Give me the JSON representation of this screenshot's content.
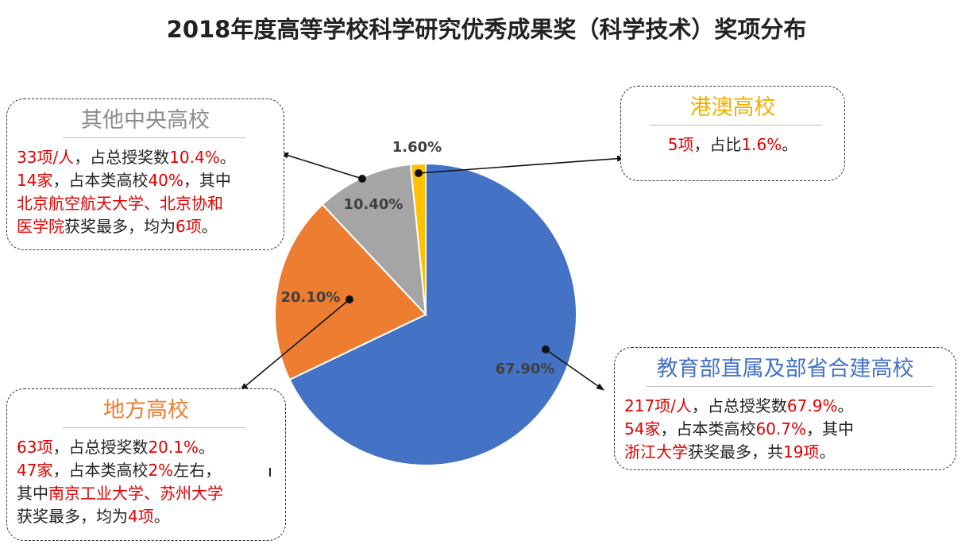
{
  "title": "2018年度高等学校科学研究优秀成果奖（科学技术）奖项分布",
  "colors": {
    "moe": "#4472C4",
    "local": "#ED7D31",
    "other": "#A5A5A5",
    "hkm": "#FFC000",
    "highlight": "#E00000"
  },
  "chart_data": {
    "type": "pie",
    "categories": [
      "教育部直属及部省合建高校",
      "地方高校",
      "其他中央高校",
      "港澳高校"
    ],
    "values": [
      67.9,
      20.1,
      10.4,
      1.6
    ],
    "data_labels": [
      "67.90%",
      "20.10%",
      "10.40%",
      "1.60%"
    ]
  },
  "boxes": {
    "other": {
      "heading": "其他中央高校",
      "lines": [
        [
          {
            "t": "33项/人",
            "hl": true
          },
          {
            "t": "，占总授奖数",
            "hl": false
          },
          {
            "t": "10.4%",
            "hl": true
          },
          {
            "t": "。",
            "hl": false
          }
        ],
        [
          {
            "t": "14家",
            "hl": true
          },
          {
            "t": "，占本类高校",
            "hl": false
          },
          {
            "t": "40%",
            "hl": true
          },
          {
            "t": "，其中",
            "hl": false
          }
        ],
        [
          {
            "t": "北京航空航天大学、北京协和",
            "hl": true
          }
        ],
        [
          {
            "t": "医学院",
            "hl": true
          },
          {
            "t": "获奖最多，均为",
            "hl": false
          },
          {
            "t": "6项",
            "hl": true
          },
          {
            "t": "。",
            "hl": false
          }
        ]
      ]
    },
    "hkm": {
      "heading": "港澳高校",
      "lines": [
        [
          {
            "t": "5项",
            "hl": true
          },
          {
            "t": "，占比",
            "hl": false
          },
          {
            "t": "1.6%",
            "hl": true
          },
          {
            "t": "。",
            "hl": false
          }
        ]
      ]
    },
    "local": {
      "heading": "地方高校",
      "lines": [
        [
          {
            "t": "63项",
            "hl": true
          },
          {
            "t": "，占总授奖数",
            "hl": false
          },
          {
            "t": "20.1%",
            "hl": true
          },
          {
            "t": "。",
            "hl": false
          }
        ],
        [
          {
            "t": "47家",
            "hl": true
          },
          {
            "t": "，占本类高校",
            "hl": false
          },
          {
            "t": "2%",
            "hl": true
          },
          {
            "t": "左右，",
            "hl": false
          }
        ],
        [
          {
            "t": "其中",
            "hl": false
          },
          {
            "t": "南京工业大学、苏州大学",
            "hl": true
          }
        ],
        [
          {
            "t": "获奖最多，均为",
            "hl": false
          },
          {
            "t": "4项",
            "hl": true
          },
          {
            "t": "。",
            "hl": false
          }
        ]
      ]
    },
    "moe": {
      "heading": "教育部直属及部省合建高校",
      "lines": [
        [
          {
            "t": "217项/人",
            "hl": true
          },
          {
            "t": "，占总授奖数",
            "hl": false
          },
          {
            "t": "67.9%",
            "hl": true
          },
          {
            "t": "。",
            "hl": false
          }
        ],
        [
          {
            "t": "54家",
            "hl": true
          },
          {
            "t": "，占本类高校",
            "hl": false
          },
          {
            "t": "60.7%",
            "hl": true
          },
          {
            "t": "，其中",
            "hl": false
          }
        ],
        [
          {
            "t": "浙江大学",
            "hl": true
          },
          {
            "t": "获奖最多，共",
            "hl": false
          },
          {
            "t": "19项",
            "hl": true
          },
          {
            "t": "。",
            "hl": false
          }
        ]
      ]
    }
  }
}
